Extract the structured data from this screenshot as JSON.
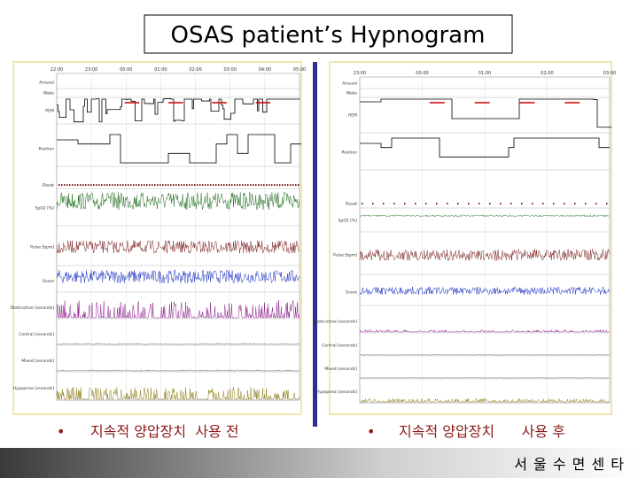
{
  "title": "OSAS patient’s Hypnogram",
  "panels": [
    {
      "times": [
        "22:00",
        "23:00",
        "00:00",
        "01:00",
        "02:00",
        "03:00",
        "04:00",
        "05:00"
      ],
      "channels": [
        "Arousal",
        "Wake",
        "REM",
        "Position",
        "Desat",
        "SpO2 [%]",
        "Pulse [bpm]",
        "Snore",
        "Obstructive [seconds]",
        "Central [seconds]",
        "Mixed [seconds]",
        "Hypopnea [seconds]"
      ],
      "bullet": "•",
      "caption": "지속적 양압장치  사용 전"
    },
    {
      "times": [
        "23:00",
        "00:00",
        "01:00",
        "02:00",
        "03:00"
      ],
      "channels": [
        "Arousal",
        "Wake",
        "REM",
        "Position",
        "Desat",
        "SpO2 [%]",
        "Pulse [bpm]",
        "Snore",
        "Obstructive [seconds]",
        "Central [seconds]",
        "Mixed [seconds]",
        "Hypopnea [seconds]"
      ],
      "bullet": "•",
      "caption": "지속적 양압장치      사용 후"
    }
  ],
  "footer": "서 울 수 면 센 타"
}
